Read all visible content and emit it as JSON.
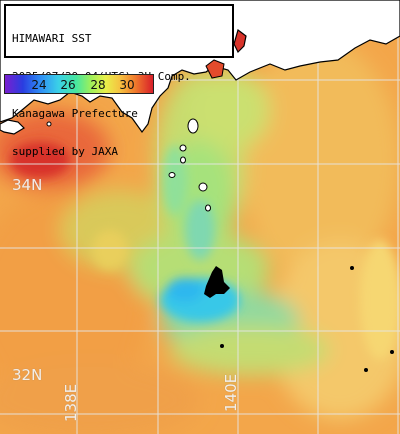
{
  "header": {
    "line1": "HIMAWARI SST",
    "line2": "2025/07/29 04(UTC) 3H Comp.",
    "line3": "Kanagawa Prefecture",
    "line4": "supplied by JAXA"
  },
  "colorbar": {
    "ticks": [
      "24",
      "26",
      "28",
      "30"
    ]
  },
  "grid": {
    "lat_labels": [
      "34N",
      "32N"
    ],
    "lon_labels": [
      "138E",
      "140E"
    ]
  },
  "colors": {
    "warm_orange": "#f3a64a",
    "hot_red": "#e34b2c",
    "cool_green": "#a6e27c",
    "cold_cyan": "#38c8e8",
    "land": "#ffffff",
    "grid": "#e6e6e6"
  }
}
